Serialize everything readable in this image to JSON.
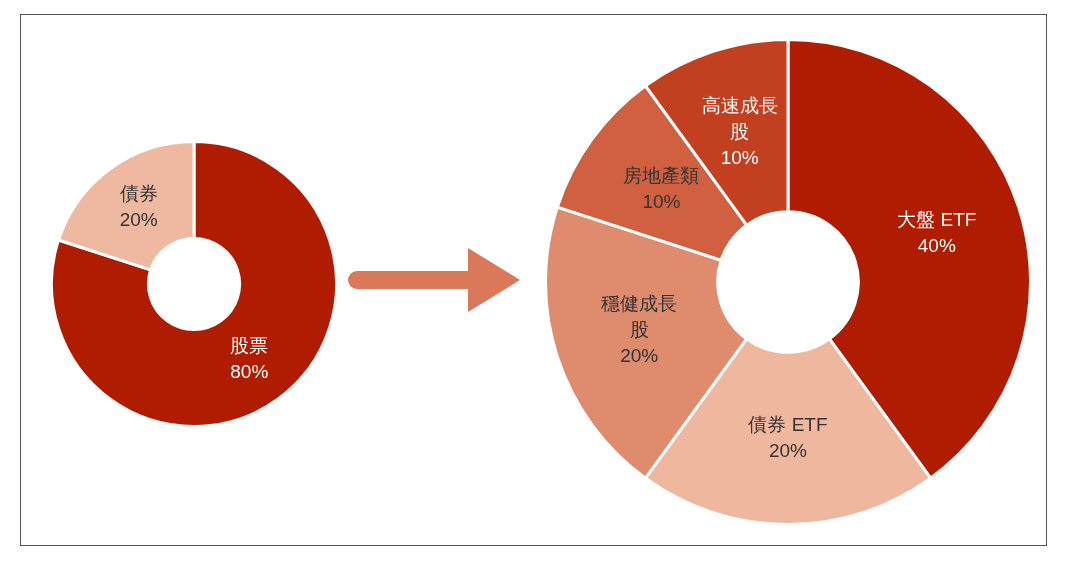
{
  "chart_data": [
    {
      "type": "donut",
      "categories": [
        "股票",
        "債券"
      ],
      "values": [
        80,
        20
      ],
      "colors": [
        "#b01c00",
        "#efb9a1"
      ],
      "value_labels": [
        "80%",
        "20%"
      ],
      "legend": false
    },
    {
      "type": "donut",
      "categories": [
        "大盤 ETF",
        "債券 ETF",
        "穩健成長股",
        "房地產類",
        "高速成長股"
      ],
      "values": [
        40,
        20,
        20,
        10,
        10
      ],
      "colors": [
        "#b01c00",
        "#efb89e",
        "#df8b6d",
        "#d0603f",
        "#c2401f"
      ],
      "value_labels": [
        "40%",
        "20%",
        "20%",
        "10%",
        "10%"
      ],
      "legend": false
    }
  ]
}
